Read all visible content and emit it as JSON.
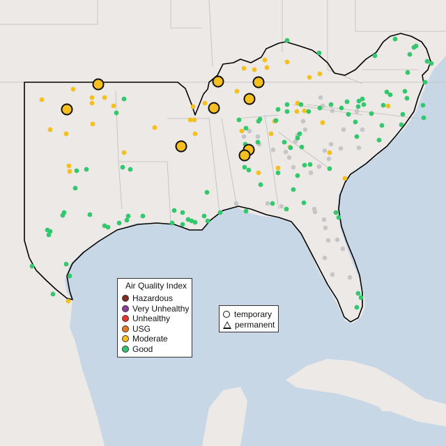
{
  "legend": {
    "title": "Air Quality Index",
    "items": [
      {
        "label": "Hazardous",
        "color": "#7e2d23"
      },
      {
        "label": "Very Unhealthy",
        "color": "#8f3f97"
      },
      {
        "label": "Unhealthy",
        "color": "#e8382d"
      },
      {
        "label": "USG",
        "color": "#e9781f"
      },
      {
        "label": "Moderate",
        "color": "#f5c01d"
      },
      {
        "label": "Good",
        "color": "#33c86e"
      }
    ]
  },
  "monitor_legend": {
    "temporary": "temporary",
    "permanent": "permanent"
  },
  "colors": {
    "ocean": "#c8d7e6",
    "land": "#ece9e6",
    "no_data": "#c6c6c8",
    "boundary": "#000000"
  }
}
